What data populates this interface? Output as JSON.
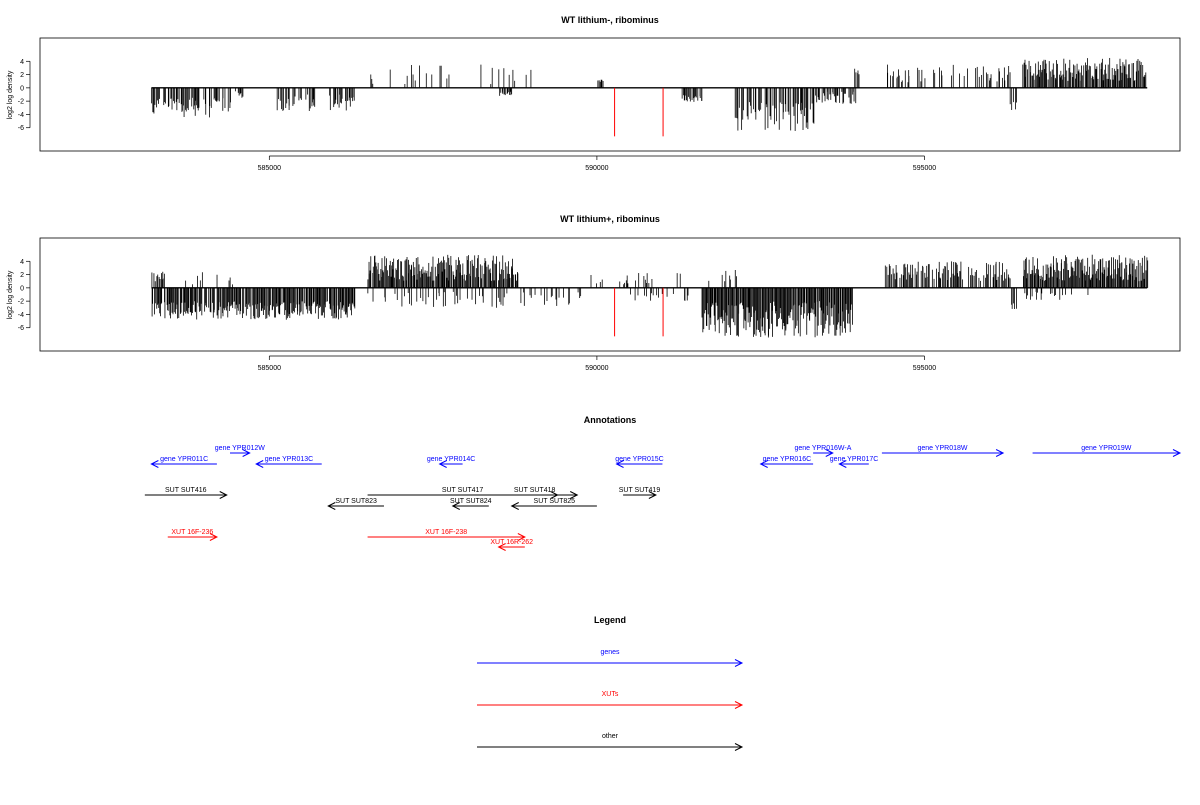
{
  "colors": {
    "gene": "#0000ff",
    "xut": "#ff0000",
    "other": "#000000",
    "red_marker": "#ff0000"
  },
  "chart_data": [
    {
      "type": "bar",
      "title": "WT lithium-, ribominus",
      "xlabel": "",
      "ylabel": "log2 log density",
      "xlim": [
        581500,
        598900
      ],
      "ylim": [
        -8,
        6
      ],
      "yticks": [
        -6,
        -4,
        -2,
        0,
        2,
        4
      ],
      "xticks": [
        585000,
        590000,
        595000
      ],
      "xtick_labels": [
        "585000",
        "590000",
        "595000"
      ],
      "red_markers": [
        590270,
        591010
      ],
      "profile": [
        {
          "from": 583200,
          "to": 584400,
          "sign": -1,
          "min": 1.5,
          "max": 4.5
        },
        {
          "from": 584450,
          "to": 584600,
          "sign": -1,
          "min": 0.5,
          "max": 1.5
        },
        {
          "from": 585100,
          "to": 585700,
          "sign": -1,
          "min": 1.0,
          "max": 3.5
        },
        {
          "from": 585900,
          "to": 586300,
          "sign": -1,
          "min": 1.0,
          "max": 3.5
        },
        {
          "from": 586500,
          "to": 589000,
          "sign": 1,
          "min": 0.5,
          "max": 3.5,
          "density": 0.18
        },
        {
          "from": 588500,
          "to": 588700,
          "sign": -1,
          "min": 0.5,
          "max": 1.2
        },
        {
          "from": 590000,
          "to": 590100,
          "sign": 1,
          "min": 0.8,
          "max": 1.5
        },
        {
          "from": 591300,
          "to": 591600,
          "sign": -1,
          "min": 1.0,
          "max": 2.2
        },
        {
          "from": 592100,
          "to": 593300,
          "sign": -1,
          "min": 2.0,
          "max": 6.5
        },
        {
          "from": 593300,
          "to": 593950,
          "sign": -1,
          "min": 0.5,
          "max": 2.5
        },
        {
          "from": 593900,
          "to": 594000,
          "sign": 1,
          "min": 1.5,
          "max": 3.0
        },
        {
          "from": 594400,
          "to": 596300,
          "sign": 1,
          "min": 0.8,
          "max": 3.5,
          "density": 0.3
        },
        {
          "from": 596300,
          "to": 596400,
          "sign": -1,
          "min": 2.0,
          "max": 3.5
        },
        {
          "from": 596500,
          "to": 598400,
          "sign": 1,
          "min": 1.0,
          "max": 4.5,
          "density": 0.9
        }
      ],
      "series": [],
      "random_seed": 11
    },
    {
      "type": "bar",
      "title": "WT lithium+, ribominus",
      "xlabel": "",
      "ylabel": "log2 log density",
      "xlim": [
        581500,
        598900
      ],
      "ylim": [
        -8,
        6
      ],
      "yticks": [
        -6,
        -4,
        -2,
        0,
        2,
        4
      ],
      "xticks": [
        585000,
        590000,
        595000
      ],
      "xtick_labels": [
        "585000",
        "590000",
        "595000"
      ],
      "red_markers": [
        590270,
        591010
      ],
      "profile": [
        {
          "from": 583200,
          "to": 583400,
          "sign": 1,
          "min": 0.5,
          "max": 2.5,
          "density": 0.5
        },
        {
          "from": 583200,
          "to": 586300,
          "sign": -1,
          "min": 2.0,
          "max": 4.8,
          "density": 0.9
        },
        {
          "from": 583600,
          "to": 584500,
          "sign": 1,
          "min": 0.5,
          "max": 2.5,
          "density": 0.2
        },
        {
          "from": 586500,
          "to": 588800,
          "sign": 1,
          "min": 1.0,
          "max": 5.0,
          "density": 0.9
        },
        {
          "from": 586500,
          "to": 589800,
          "sign": -1,
          "min": 0.5,
          "max": 3.0,
          "density": 0.25
        },
        {
          "from": 589900,
          "to": 591300,
          "sign": 1,
          "min": 0.5,
          "max": 2.5,
          "density": 0.2
        },
        {
          "from": 590500,
          "to": 591400,
          "sign": -1,
          "min": 0.5,
          "max": 2.0,
          "density": 0.2
        },
        {
          "from": 591600,
          "to": 593900,
          "sign": -1,
          "min": 2.0,
          "max": 7.5,
          "density": 1.0
        },
        {
          "from": 591600,
          "to": 592200,
          "sign": 1,
          "min": 0.5,
          "max": 3.0,
          "density": 0.2
        },
        {
          "from": 594400,
          "to": 596300,
          "sign": 1,
          "min": 1.0,
          "max": 4.0,
          "density": 0.55
        },
        {
          "from": 596300,
          "to": 596400,
          "sign": -1,
          "min": 2.0,
          "max": 3.5
        },
        {
          "from": 596500,
          "to": 598400,
          "sign": 1,
          "min": 1.0,
          "max": 5.0,
          "density": 1.0
        },
        {
          "from": 596500,
          "to": 597500,
          "sign": -1,
          "min": 0.5,
          "max": 1.8,
          "density": 0.2
        }
      ],
      "series": [],
      "random_seed": 29
    }
  ],
  "annotations": {
    "title": "Annotations",
    "features": [
      {
        "label": "gene YPR011C",
        "kind": "gene",
        "strand": "-",
        "from": 583200,
        "to": 584200,
        "track": 1
      },
      {
        "label": "gene YPR012W",
        "kind": "gene",
        "strand": "+",
        "from": 584400,
        "to": 584700,
        "track": 0
      },
      {
        "label": "gene YPR013C",
        "kind": "gene",
        "strand": "-",
        "from": 584800,
        "to": 585800,
        "track": 1
      },
      {
        "label": "gene YPR014C",
        "kind": "gene",
        "strand": "-",
        "from": 587600,
        "to": 587950,
        "track": 1
      },
      {
        "label": "gene YPR015C",
        "kind": "gene",
        "strand": "-",
        "from": 590300,
        "to": 591000,
        "track": 1
      },
      {
        "label": "gene YPR016W-A",
        "kind": "gene",
        "strand": "+",
        "from": 593300,
        "to": 593600,
        "track": 0
      },
      {
        "label": "gene YPR016C",
        "kind": "gene",
        "strand": "-",
        "from": 592500,
        "to": 593300,
        "track": 1
      },
      {
        "label": "gene YPR017C",
        "kind": "gene",
        "strand": "-",
        "from": 593700,
        "to": 594150,
        "track": 1
      },
      {
        "label": "gene YPR018W",
        "kind": "gene",
        "strand": "+",
        "from": 594350,
        "to": 596200,
        "track": 0
      },
      {
        "label": "gene YPR019W",
        "kind": "gene",
        "strand": "+",
        "from": 596650,
        "to": 598900,
        "track": 0
      },
      {
        "label": "SUT SUT416",
        "kind": "other",
        "strand": "+",
        "from": 583100,
        "to": 584350,
        "track": 2
      },
      {
        "label": "SUT SUT417",
        "kind": "other",
        "strand": "+",
        "from": 586500,
        "to": 589400,
        "track": 2
      },
      {
        "label": "SUT SUT418",
        "kind": "other",
        "strand": "+",
        "from": 588400,
        "to": 589700,
        "track": 2
      },
      {
        "label": "SUT SUT419",
        "kind": "other",
        "strand": "+",
        "from": 590400,
        "to": 590900,
        "track": 2
      },
      {
        "label": "SUT SUT823",
        "kind": "other",
        "strand": "-",
        "from": 585900,
        "to": 586750,
        "track": 3
      },
      {
        "label": "SUT SUT824",
        "kind": "other",
        "strand": "-",
        "from": 587800,
        "to": 588350,
        "track": 3
      },
      {
        "label": "SUT SUT825",
        "kind": "other",
        "strand": "-",
        "from": 588700,
        "to": 590000,
        "track": 3
      },
      {
        "label": "XUT 16F-236",
        "kind": "xut",
        "strand": "+",
        "from": 583450,
        "to": 584200,
        "track": 4
      },
      {
        "label": "XUT 16F-238",
        "kind": "xut",
        "strand": "+",
        "from": 586500,
        "to": 588900,
        "track": 4
      },
      {
        "label": "XUT 16R-262",
        "kind": "xut",
        "strand": "-",
        "from": 588500,
        "to": 588900,
        "track": 5
      }
    ]
  },
  "legend": {
    "title": "Legend",
    "items": [
      {
        "label": "genes",
        "kind": "gene"
      },
      {
        "label": "XUTs",
        "kind": "xut"
      },
      {
        "label": "other",
        "kind": "other"
      }
    ]
  }
}
